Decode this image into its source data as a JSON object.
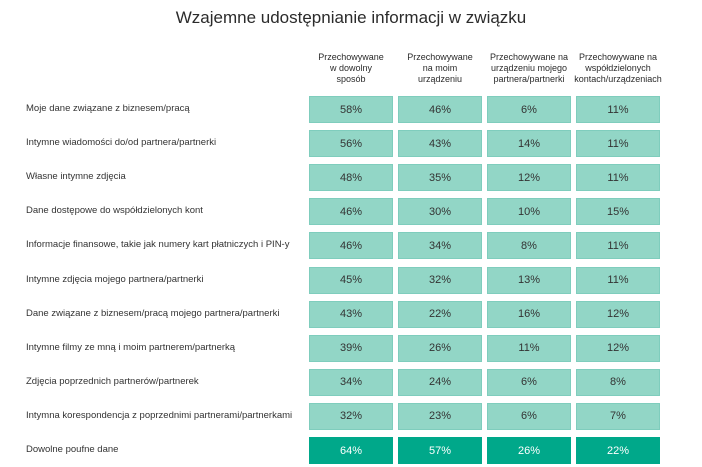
{
  "chart_data": {
    "type": "table",
    "title": "Wzajemne udostępnianie informacji w związku",
    "columns": [
      "Przechowywane w dowolny sposób",
      "Przechowywane na moim urządzeniu",
      "Przechowywane na urządzeniu mojego partnera/partnerki",
      "Przechowywane na współdzielonych kontach/urządzeniach"
    ],
    "column_lines": [
      [
        "Przechowywane",
        "w dowolny",
        "sposób"
      ],
      [
        "Przechowywane",
        "na moim",
        "urządzeniu"
      ],
      [
        "Przechowywane na",
        "urządzeniu mojego",
        "partnera/partnerki"
      ],
      [
        "Przechowywane na",
        "współdzielonych",
        "kontach/urządzeniach"
      ]
    ],
    "rows": [
      {
        "label": "Moje dane związane z biznesem/pracą",
        "values": [
          "58%",
          "46%",
          "6%",
          "11%"
        ]
      },
      {
        "label": "Intymne wiadomości do/od partnera/partnerki",
        "values": [
          "56%",
          "43%",
          "14%",
          "11%"
        ]
      },
      {
        "label": "Własne intymne zdjęcia",
        "values": [
          "48%",
          "35%",
          "12%",
          "11%"
        ]
      },
      {
        "label": "Dane dostępowe do współdzielonych kont",
        "values": [
          "46%",
          "30%",
          "10%",
          "15%"
        ]
      },
      {
        "label": "Informacje finansowe, takie jak numery kart płatniczych i PIN-y",
        "values": [
          "46%",
          "34%",
          "8%",
          "11%"
        ]
      },
      {
        "label": "Intymne zdjęcia mojego partnera/partnerki",
        "values": [
          "45%",
          "32%",
          "13%",
          "11%"
        ]
      },
      {
        "label": "Dane związane z biznesem/pracą mojego partnera/partnerki",
        "values": [
          "43%",
          "22%",
          "16%",
          "12%"
        ]
      },
      {
        "label": "Intymne filmy ze mną i moim partnerem/partnerką",
        "values": [
          "39%",
          "26%",
          "11%",
          "12%"
        ]
      },
      {
        "label": "Zdjęcia poprzednich partnerów/partnerek",
        "values": [
          "34%",
          "24%",
          "6%",
          "8%"
        ]
      },
      {
        "label": "Intymna korespondencja z poprzednimi partnerami/partnerkami",
        "values": [
          "32%",
          "23%",
          "6%",
          "7%"
        ]
      },
      {
        "label": "Dowolne poufne dane",
        "values": [
          "64%",
          "57%",
          "26%",
          "22%"
        ],
        "highlight": true
      }
    ],
    "colors": {
      "cell": "#92d6c6",
      "highlight": "#00a88a"
    }
  }
}
